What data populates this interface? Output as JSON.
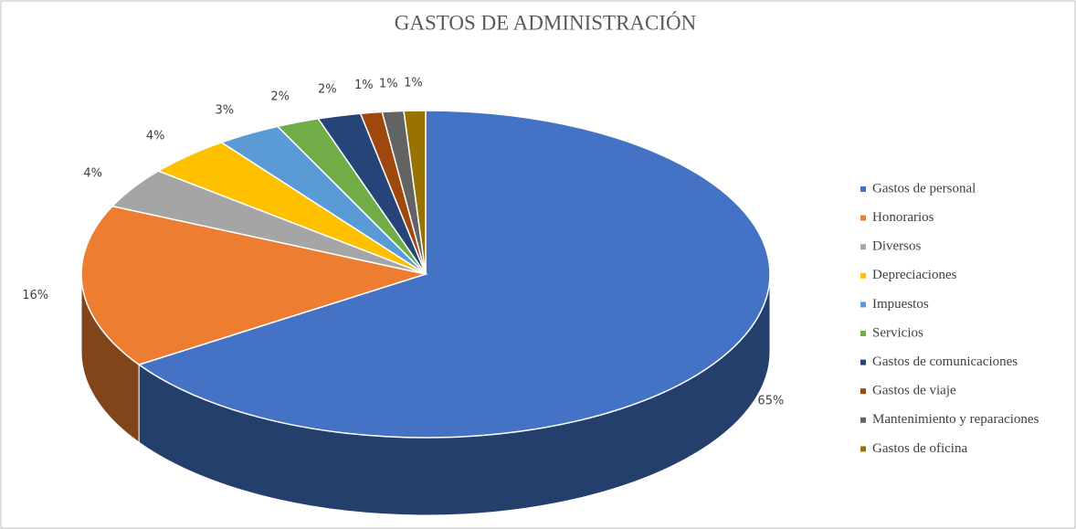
{
  "chart_data": {
    "type": "pie",
    "title": "GASTOS DE ADMINISTRACIÓN",
    "categories": [
      "Gastos de personal",
      "Honorarios",
      "Diversos",
      "Depreciaciones",
      "Impuestos",
      "Servicios",
      "Gastos de comunicaciones",
      "Gastos de viaje",
      "Mantenimiento y reparaciones",
      "Gastos de oficina"
    ],
    "values": [
      65,
      16,
      4,
      4,
      3,
      2,
      2,
      1,
      1,
      1
    ],
    "value_labels": [
      "65%",
      "16%",
      "4%",
      "4%",
      "3%",
      "2%",
      "2%",
      "1%",
      "1%",
      "1%"
    ],
    "colors": [
      "#4472c4",
      "#ed7d31",
      "#a5a5a5",
      "#ffc000",
      "#5b9bd5",
      "#70ad47",
      "#264478",
      "#9e480e",
      "#636363",
      "#997300"
    ],
    "legend": "right"
  }
}
